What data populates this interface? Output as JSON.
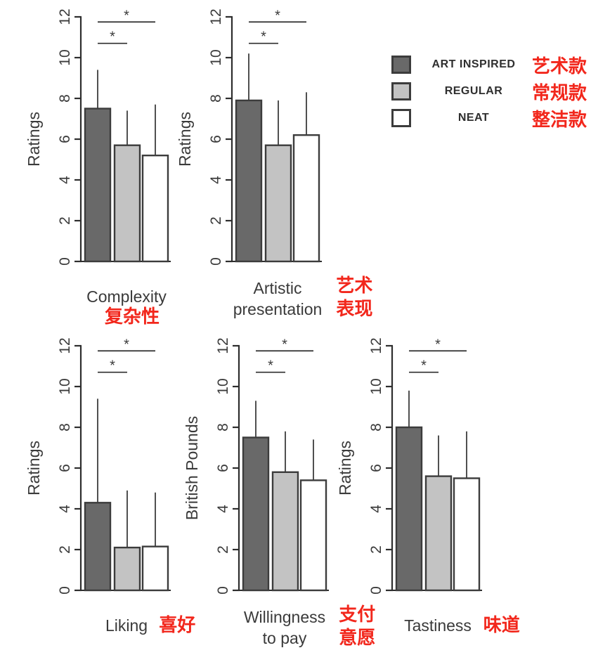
{
  "figure": {
    "background": "#ffffff",
    "accent_red": "#f2271c",
    "axis_color": "#2e2e2e",
    "bar_border_color": "#3c3c3c",
    "text_color": "#3a3a3a"
  },
  "legend": {
    "position": "top-right",
    "items": [
      {
        "label": "ART INSPIRED",
        "label_cn": "艺术款",
        "color": "#696969"
      },
      {
        "label": "REGULAR",
        "label_cn": "常规款",
        "color": "#c3c3c3"
      },
      {
        "label": "NEAT",
        "label_cn": "整洁款",
        "color": "#ffffff"
      }
    ]
  },
  "chart_data": [
    {
      "type": "bar",
      "key": "complexity",
      "title_lines": [
        "Complexity"
      ],
      "title_cn_lines": [
        "复杂性"
      ],
      "cn_position": "below",
      "ylabel": "Ratings",
      "ylim": [
        0,
        12
      ],
      "yticks": [
        0,
        2,
        4,
        6,
        8,
        10,
        12
      ],
      "grid": "off",
      "categories": [
        "ART INSPIRED",
        "REGULAR",
        "NEAT"
      ],
      "values": [
        7.5,
        5.7,
        5.2
      ],
      "error_upper": [
        9.4,
        7.4,
        7.7
      ],
      "significance": [
        {
          "between": [
            0,
            1
          ],
          "height": 10.7,
          "label": "*"
        },
        {
          "between": [
            0,
            2
          ],
          "height": 11.75,
          "label": "*"
        }
      ]
    },
    {
      "type": "bar",
      "key": "artistic-presentation",
      "title_lines": [
        "Artistic",
        "presentation"
      ],
      "title_cn_lines": [
        "艺术",
        "表现"
      ],
      "cn_position": "right-stacked",
      "ylabel": "Ratings",
      "ylim": [
        0,
        12
      ],
      "yticks": [
        0,
        2,
        4,
        6,
        8,
        10,
        12
      ],
      "grid": "off",
      "categories": [
        "ART INSPIRED",
        "REGULAR",
        "NEAT"
      ],
      "values": [
        7.9,
        5.7,
        6.2
      ],
      "error_upper": [
        10.2,
        7.9,
        8.3
      ],
      "significance": [
        {
          "between": [
            0,
            1
          ],
          "height": 10.7,
          "label": "*"
        },
        {
          "between": [
            0,
            2
          ],
          "height": 11.75,
          "label": "*"
        }
      ]
    },
    {
      "type": "bar",
      "key": "liking",
      "title_lines": [
        "Liking"
      ],
      "title_cn_lines": [
        "喜好"
      ],
      "cn_position": "right-inline",
      "ylabel": "Ratings",
      "ylim": [
        0,
        12
      ],
      "yticks": [
        0,
        2,
        4,
        6,
        8,
        10,
        12
      ],
      "grid": "off",
      "categories": [
        "ART INSPIRED",
        "REGULAR",
        "NEAT"
      ],
      "values": [
        4.3,
        2.1,
        2.15
      ],
      "error_upper": [
        9.4,
        4.9,
        4.8
      ],
      "significance": [
        {
          "between": [
            0,
            1
          ],
          "height": 10.7,
          "label": "*"
        },
        {
          "between": [
            0,
            2
          ],
          "height": 11.75,
          "label": "*"
        }
      ]
    },
    {
      "type": "bar",
      "key": "willingness-to-pay",
      "title_lines": [
        "Willingness",
        "to pay"
      ],
      "title_cn_lines": [
        "支付",
        "意愿"
      ],
      "cn_position": "right-stacked",
      "ylabel": "British Pounds",
      "ylim": [
        0,
        12
      ],
      "yticks": [
        0,
        2,
        4,
        6,
        8,
        10,
        12
      ],
      "grid": "off",
      "categories": [
        "ART INSPIRED",
        "REGULAR",
        "NEAT"
      ],
      "values": [
        7.5,
        5.8,
        5.4
      ],
      "error_upper": [
        9.3,
        7.8,
        7.4
      ],
      "significance": [
        {
          "between": [
            0,
            1
          ],
          "height": 10.7,
          "label": "*"
        },
        {
          "between": [
            0,
            2
          ],
          "height": 11.75,
          "label": "*"
        }
      ]
    },
    {
      "type": "bar",
      "key": "tastiness",
      "title_lines": [
        "Tastiness"
      ],
      "title_cn_lines": [
        "味道"
      ],
      "cn_position": "right-inline",
      "ylabel": "Ratings",
      "ylim": [
        0,
        12
      ],
      "yticks": [
        0,
        2,
        4,
        6,
        8,
        10,
        12
      ],
      "grid": "off",
      "categories": [
        "ART INSPIRED",
        "REGULAR",
        "NEAT"
      ],
      "values": [
        8.0,
        5.6,
        5.5
      ],
      "error_upper": [
        9.8,
        7.6,
        7.8
      ],
      "significance": [
        {
          "between": [
            0,
            1
          ],
          "height": 10.7,
          "label": "*"
        },
        {
          "between": [
            0,
            2
          ],
          "height": 11.75,
          "label": "*"
        }
      ]
    }
  ]
}
